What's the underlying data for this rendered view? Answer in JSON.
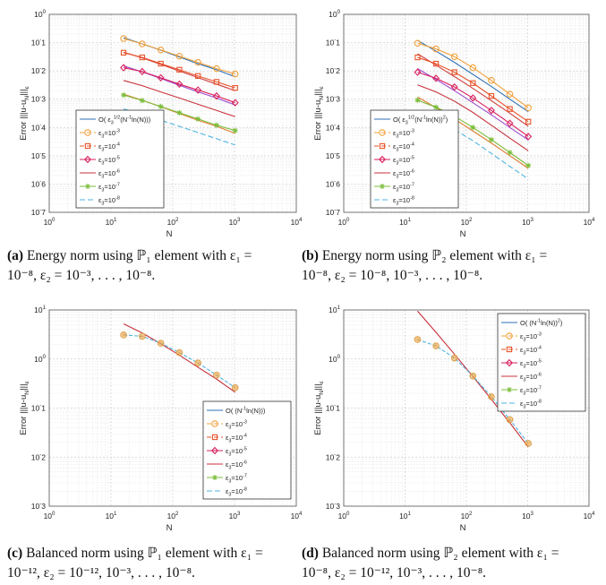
{
  "colors": {
    "ref": "#2e6fb4",
    "e3": "#f0a03a",
    "e4": "#e8532a",
    "e5": "#d91f5c",
    "e6": "#c9303b",
    "e7": "#7bbd3a",
    "e8": "#4fb3e0",
    "ref_p2_a": "#d03b3b",
    "ref_p2_b": "#9b4dd0",
    "ref_p2_c": "#e07b2e"
  },
  "chart_data": [
    {
      "type": "line",
      "id": "a",
      "xscale": "log",
      "yscale": "log",
      "xlim": [
        1,
        10000
      ],
      "ylim": [
        1e-07,
        1
      ],
      "xlabel": "N",
      "ylabel": "Error |||u-u_N|||_ε",
      "xticks": [
        "10^0",
        "10^1",
        "10^2",
        "10^3",
        "10^4"
      ],
      "yticks": [
        "10^-7",
        "10^-6",
        "10^-5",
        "10^-4",
        "10^-3",
        "10^-2",
        "10^-1",
        "10^0"
      ],
      "legend_position": "bottom-left",
      "legend": [
        "O( ε_3^{1/2}(N^{-1}ln(N)))",
        "ε_3=10^{-3}",
        "ε_3=10^{-4}",
        "ε_3=10^{-5}",
        "ε_3=10^{-6}",
        "ε_3=10^{-7}",
        "ε_3=10^{-8}"
      ],
      "x": [
        16,
        32,
        64,
        128,
        256,
        512,
        1024
      ],
      "series": [
        {
          "name": "O ref e3",
          "values": [
            0.15,
            0.09,
            0.054,
            0.031,
            0.018,
            0.011,
            0.0062
          ]
        },
        {
          "name": "ε_3=10^{-3}",
          "values": [
            0.14,
            0.09,
            0.055,
            0.033,
            0.02,
            0.012,
            0.0078
          ]
        },
        {
          "name": "O ref e4",
          "values": [
            0.046,
            0.029,
            0.017,
            0.0099,
            0.0058,
            0.0034,
            0.002
          ]
        },
        {
          "name": "ε_3=10^{-4}",
          "values": [
            0.044,
            0.03,
            0.018,
            0.011,
            0.0066,
            0.0041,
            0.0025
          ]
        },
        {
          "name": "O ref e5",
          "values": [
            0.015,
            0.0092,
            0.0054,
            0.0031,
            0.0018,
            0.0011,
            0.00062
          ]
        },
        {
          "name": "ε_3=10^{-5}",
          "values": [
            0.013,
            0.0095,
            0.0057,
            0.0034,
            0.0021,
            0.0013,
            0.00075
          ]
        },
        {
          "name": "ε_3=10^{-6}",
          "values": [
            0.0046,
            0.003,
            0.0018,
            0.0011,
            0.00066,
            0.0004,
            0.00024
          ]
        },
        {
          "name": "O ref e7",
          "values": [
            0.0015,
            0.00092,
            0.00054,
            0.00031,
            0.00018,
            0.00011,
            6.2e-05
          ]
        },
        {
          "name": "ε_3=10^{-7}",
          "values": [
            0.0014,
            0.0009,
            0.00055,
            0.00033,
            0.0002,
            0.00012,
            7.8e-05
          ]
        },
        {
          "name": "ε_3=10^{-8}",
          "values": [
            0.00045,
            0.0003,
            0.00018,
            0.00011,
            6.6e-05,
            4e-05,
            2.4e-05
          ]
        }
      ]
    },
    {
      "type": "line",
      "id": "b",
      "xscale": "log",
      "yscale": "log",
      "xlim": [
        1,
        10000
      ],
      "ylim": [
        1e-07,
        1
      ],
      "xlabel": "N",
      "ylabel": "Error |||u-u_N|||_ε",
      "xticks": [
        "10^0",
        "10^1",
        "10^2",
        "10^3",
        "10^4"
      ],
      "yticks": [
        "10^-7",
        "10^-6",
        "10^-5",
        "10^-4",
        "10^-3",
        "10^-2",
        "10^-1",
        "10^0"
      ],
      "legend_position": "bottom-left",
      "legend": [
        "O( ε_3^{1/2}(N^{-1}ln(N))^2)",
        "ε_3=10^{-3}",
        "ε_3=10^{-4}",
        "ε_3=10^{-5}",
        "ε_3=10^{-6}",
        "ε_3=10^{-7}",
        "ε_3=10^{-8}"
      ],
      "x": [
        16,
        32,
        64,
        128,
        256,
        512,
        1024
      ],
      "series": [
        {
          "name": "O ref e3",
          "values": [
            0.12,
            0.05,
            0.02,
            0.0075,
            0.0028,
            0.001,
            0.00036
          ]
        },
        {
          "name": "ε_3=10^{-3}",
          "values": [
            0.095,
            0.06,
            0.032,
            0.013,
            0.0046,
            0.0015,
            0.0005
          ]
        },
        {
          "name": "O ref e4",
          "values": [
            0.04,
            0.016,
            0.0063,
            0.0024,
            0.00088,
            0.00032,
            0.00011
          ]
        },
        {
          "name": "ε_3=10^{-4}",
          "values": [
            0.03,
            0.018,
            0.009,
            0.0037,
            0.0013,
            0.00045,
            0.00016
          ]
        },
        {
          "name": "O ref e5",
          "values": [
            0.012,
            0.005,
            0.002,
            0.00075,
            0.00028,
            0.0001,
            3.6e-05
          ]
        },
        {
          "name": "ε_3=10^{-5}",
          "values": [
            0.009,
            0.0055,
            0.0027,
            0.0011,
            0.0004,
            0.00014,
            4.8e-05
          ]
        },
        {
          "name": "ε_3=10^{-6}",
          "values": [
            0.0032,
            0.0018,
            0.00085,
            0.00034,
            0.00012,
            4.2e-05,
            1.5e-05
          ]
        },
        {
          "name": "O ref e7",
          "values": [
            0.0012,
            0.0005,
            0.0002,
            7.5e-05,
            2.8e-05,
            1e-05,
            3.6e-06
          ]
        },
        {
          "name": "ε_3=10^{-7}",
          "values": [
            0.00092,
            0.00052,
            0.00025,
            0.0001,
            3.7e-05,
            1.3e-05,
            4.5e-06
          ]
        },
        {
          "name": "ε_3=10^{-8}",
          "values": [
            0.0003,
            0.00018,
            8.5e-05,
            3.4e-05,
            1.2e-05,
            4.2e-06,
            1.5e-06
          ]
        }
      ]
    },
    {
      "type": "line",
      "id": "c",
      "xscale": "log",
      "yscale": "log",
      "xlim": [
        1,
        10000
      ],
      "ylim": [
        0.001,
        10
      ],
      "xlabel": "N",
      "ylabel": "Error |||u-u_N|||_ε",
      "xticks": [
        "10^0",
        "10^1",
        "10^2",
        "10^3",
        "10^4"
      ],
      "yticks": [
        "10^-3",
        "10^-2",
        "10^-1",
        "10^0",
        "10^1"
      ],
      "legend_position": "bottom-right",
      "legend": [
        "O( (N^{-1}ln(N)))",
        "ε_3=10^{-3}",
        "ε_3=10^{-4}",
        "ε_3=10^{-5}",
        "ε_3=10^{-6}",
        "ε_3=10^{-7}",
        "ε_3=10^{-8}"
      ],
      "x": [
        16,
        32,
        64,
        128,
        256,
        512,
        1024
      ],
      "series": [
        {
          "name": "O( (N^{-1}ln(N)))",
          "values": [
            5.2,
            3.4,
            2.05,
            1.2,
            0.68,
            0.39,
            0.21
          ]
        },
        {
          "name": "ε_3=10^{-3}..10^{-8}",
          "values": [
            3.1,
            2.9,
            2.1,
            1.35,
            0.83,
            0.47,
            0.26
          ]
        }
      ]
    },
    {
      "type": "line",
      "id": "d",
      "xscale": "log",
      "yscale": "log",
      "xlim": [
        1,
        10000
      ],
      "ylim": [
        0.001,
        10
      ],
      "xlabel": "N",
      "ylabel": "Error |||u-u_N|||_ε",
      "xticks": [
        "10^0",
        "10^1",
        "10^2",
        "10^3",
        "10^4"
      ],
      "yticks": [
        "10^-3",
        "10^-2",
        "10^-1",
        "10^0",
        "10^1"
      ],
      "legend_position": "top-right",
      "legend": [
        "O( (N^{-1}ln(N))^2)",
        "ε_3=10^{-3}",
        "ε_3=10^{-4}",
        "ε_3=10^{-5}",
        "ε_3=10^{-6}",
        "ε_3=10^{-7}",
        "ε_3=10^{-8}"
      ],
      "x": [
        16,
        32,
        64,
        128,
        256,
        512,
        1024
      ],
      "series": [
        {
          "name": "O( (N^{-1}ln(N))^2)",
          "values": [
            9.5,
            3.5,
            1.25,
            0.44,
            0.15,
            0.05,
            0.016
          ]
        },
        {
          "name": "ε_3=10^{-3}..10^{-8}",
          "values": [
            2.5,
            1.85,
            1.05,
            0.45,
            0.17,
            0.058,
            0.019
          ]
        }
      ]
    }
  ],
  "captions": {
    "a": {
      "tag": "(a)",
      "line1": "Energy norm using ℙ₁ element with ε₁ =",
      "line2": "10⁻⁸, ε₂ = 10⁻³, . . . , 10⁻⁸."
    },
    "b": {
      "tag": "(b)",
      "line1": "Energy norm using ℙ₂ element with ε₁ =",
      "line2": "10⁻⁸, ε₂ = 10⁻⁸, 10⁻³, . . . , 10⁻⁸."
    },
    "c": {
      "tag": "(c)",
      "line1": "Balanced norm using ℙ₁ element with ε₁ =",
      "line2": "10⁻¹², ε₂ = 10⁻¹², 10⁻³, . . . , 10⁻⁸."
    },
    "d": {
      "tag": "(d)",
      "line1": "Balanced norm using ℙ₂ element with ε₁ =",
      "line2": "10⁻⁸, ε₂ = 10⁻¹², 10⁻³, . . . , 10⁻⁸."
    }
  }
}
